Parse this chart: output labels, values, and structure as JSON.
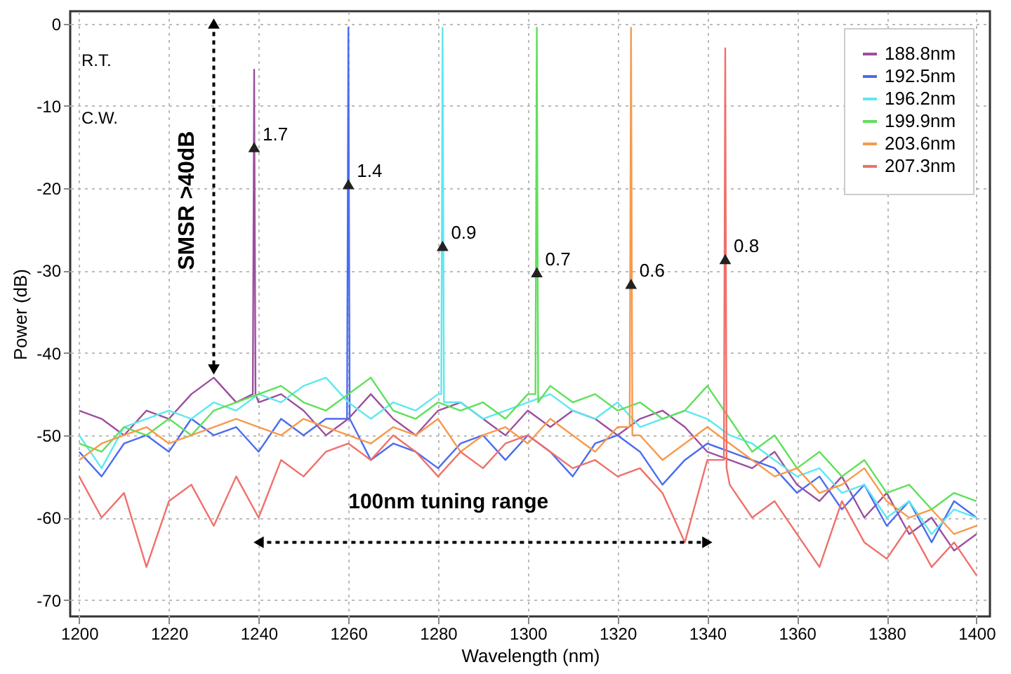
{
  "chart_data": {
    "type": "line",
    "xlabel": "Wavelength (nm)",
    "ylabel": "Power (dB)",
    "xlim": [
      1198,
      1403
    ],
    "ylim": [
      -72,
      1.5
    ],
    "xticks": [
      1200,
      1220,
      1240,
      1260,
      1280,
      1300,
      1320,
      1340,
      1360,
      1380,
      1400
    ],
    "yticks": [
      0,
      -10,
      -20,
      -30,
      -40,
      -50,
      -60,
      -70
    ],
    "grid": true,
    "legend": "top right",
    "line_style": "solid",
    "series": [
      {
        "name": "188.8nm",
        "color": "#9b4f9e",
        "x": [
          1200,
          1205,
          1210,
          1215,
          1220,
          1225,
          1230,
          1235,
          1238.7,
          1239,
          1239.3,
          1240,
          1245,
          1250,
          1255,
          1260,
          1265,
          1270,
          1275,
          1280,
          1285,
          1290,
          1295,
          1300,
          1305,
          1310,
          1315,
          1320,
          1325,
          1330,
          1335,
          1340,
          1345,
          1350,
          1355,
          1360,
          1365,
          1370,
          1375,
          1380,
          1385,
          1390,
          1395,
          1400
        ],
        "values": [
          -47,
          -48,
          -50,
          -47,
          -48,
          -45,
          -43,
          -46,
          -45,
          -5.6,
          -45,
          -46,
          -45,
          -47,
          -50,
          -48,
          -45,
          -48,
          -50,
          -47,
          -46,
          -48,
          -50,
          -47,
          -49,
          -47,
          -48,
          -50,
          -48,
          -47,
          -49,
          -52,
          -53,
          -54,
          -52,
          -56,
          -58,
          -55,
          -60,
          -57,
          -62,
          -60,
          -64,
          -62
        ]
      },
      {
        "name": "192.5nm",
        "color": "#4a6cf0",
        "x": [
          1200,
          1205,
          1210,
          1215,
          1220,
          1225,
          1230,
          1235,
          1240,
          1245,
          1250,
          1255,
          1259.7,
          1260,
          1260.3,
          1265,
          1270,
          1275,
          1280,
          1285,
          1290,
          1295,
          1300,
          1305,
          1310,
          1315,
          1320,
          1325,
          1330,
          1335,
          1340,
          1345,
          1350,
          1355,
          1360,
          1365,
          1370,
          1375,
          1380,
          1385,
          1390,
          1395,
          1400
        ],
        "values": [
          -52,
          -55,
          -51,
          -50,
          -52,
          -48,
          -50,
          -49,
          -52,
          -48,
          -50,
          -48,
          -48,
          -0.5,
          -48,
          -53,
          -51,
          -52,
          -54,
          -51,
          -50,
          -53,
          -50,
          -52,
          -55,
          -51,
          -50,
          -52,
          -56,
          -53,
          -51,
          -52,
          -53,
          -54,
          -57,
          -55,
          -59,
          -56,
          -61,
          -58,
          -63,
          -58,
          -60
        ]
      },
      {
        "name": "196.2nm",
        "color": "#5ee8f0",
        "x": [
          1200,
          1205,
          1210,
          1215,
          1220,
          1225,
          1230,
          1235,
          1240,
          1245,
          1250,
          1255,
          1260,
          1265,
          1270,
          1275,
          1280,
          1280.7,
          1281,
          1281.3,
          1285,
          1290,
          1295,
          1300,
          1305,
          1310,
          1315,
          1320,
          1325,
          1330,
          1335,
          1340,
          1345,
          1350,
          1355,
          1360,
          1365,
          1370,
          1375,
          1380,
          1385,
          1390,
          1395,
          1400
        ],
        "values": [
          -50,
          -54,
          -49,
          -48,
          -47,
          -48,
          -46,
          -47,
          -45,
          -46,
          -44,
          -43,
          -46,
          -48,
          -46,
          -47,
          -45,
          -45,
          -0.5,
          -46,
          -46,
          -48,
          -47,
          -46,
          -45,
          -47,
          -48,
          -46,
          -49,
          -48,
          -47,
          -48,
          -50,
          -51,
          -53,
          -55,
          -54,
          -57,
          -56,
          -60,
          -58,
          -62,
          -59,
          -60
        ]
      },
      {
        "name": "199.9nm",
        "color": "#5fe05a",
        "x": [
          1200,
          1205,
          1210,
          1215,
          1220,
          1225,
          1230,
          1235,
          1240,
          1245,
          1250,
          1255,
          1260,
          1265,
          1270,
          1275,
          1280,
          1285,
          1290,
          1295,
          1300,
          1301.7,
          1302,
          1302.3,
          1305,
          1310,
          1315,
          1320,
          1325,
          1330,
          1335,
          1340,
          1345,
          1350,
          1355,
          1360,
          1365,
          1370,
          1375,
          1380,
          1385,
          1390,
          1395,
          1400
        ],
        "values": [
          -51,
          -52,
          -49,
          -50,
          -48,
          -50,
          -47,
          -46,
          -45,
          -44,
          -46,
          -47,
          -45,
          -43,
          -47,
          -48,
          -46,
          -47,
          -46,
          -48,
          -45,
          -45,
          -0.5,
          -46,
          -44,
          -46,
          -45,
          -47,
          -46,
          -48,
          -47,
          -44,
          -48,
          -52,
          -50,
          -54,
          -52,
          -55,
          -53,
          -57,
          -56,
          -59,
          -57,
          -58
        ]
      },
      {
        "name": "203.6nm",
        "color": "#f79a4c",
        "x": [
          1200,
          1205,
          1210,
          1215,
          1220,
          1225,
          1230,
          1235,
          1240,
          1245,
          1250,
          1255,
          1260,
          1265,
          1270,
          1275,
          1280,
          1285,
          1290,
          1295,
          1300,
          1305,
          1310,
          1315,
          1320,
          1322.7,
          1323,
          1323.3,
          1325,
          1330,
          1335,
          1340,
          1345,
          1350,
          1355,
          1360,
          1365,
          1370,
          1375,
          1380,
          1385,
          1390,
          1395,
          1400
        ],
        "values": [
          -53,
          -51,
          -50,
          -49,
          -51,
          -50,
          -49,
          -48,
          -49,
          -50,
          -48,
          -49,
          -50,
          -51,
          -49,
          -50,
          -48,
          -52,
          -50,
          -49,
          -51,
          -48,
          -50,
          -52,
          -49,
          -49,
          -0.5,
          -50,
          -50,
          -53,
          -51,
          -49,
          -51,
          -53,
          -55,
          -54,
          -57,
          -56,
          -54,
          -58,
          -60,
          -59,
          -62,
          -61
        ]
      },
      {
        "name": "207.3nm",
        "color": "#f0706a",
        "x": [
          1200,
          1205,
          1210,
          1215,
          1220,
          1225,
          1230,
          1235,
          1240,
          1245,
          1250,
          1255,
          1260,
          1265,
          1270,
          1275,
          1280,
          1285,
          1290,
          1295,
          1300,
          1305,
          1310,
          1315,
          1320,
          1325,
          1330,
          1335,
          1340,
          1343.7,
          1344,
          1344.3,
          1345,
          1350,
          1355,
          1360,
          1365,
          1370,
          1375,
          1380,
          1385,
          1390,
          1395,
          1400
        ],
        "values": [
          -55,
          -60,
          -57,
          -66,
          -58,
          -56,
          -61,
          -55,
          -60,
          -53,
          -55,
          -52,
          -51,
          -53,
          -50,
          -52,
          -55,
          -52,
          -54,
          -51,
          -50,
          -52,
          -54,
          -53,
          -55,
          -54,
          -57,
          -63,
          -53,
          -53,
          -3,
          -54,
          -56,
          -60,
          -58,
          -62,
          -66,
          -58,
          -63,
          -65,
          -61,
          -66,
          -63,
          -67
        ]
      }
    ],
    "annotations": [
      "R.T.",
      "C.W.",
      "SMSR >40dB",
      "100nm tuning range",
      {
        "text": "1.7",
        "x": 1239,
        "y": -15
      },
      {
        "text": "1.4",
        "x": 1260,
        "y": -19.5
      },
      {
        "text": "0.9",
        "x": 1281,
        "y": -27
      },
      {
        "text": "0.7",
        "x": 1302,
        "y": -30.2
      },
      {
        "text": "0.6",
        "x": 1323,
        "y": -31.6
      },
      {
        "text": "0.8",
        "x": 1344,
        "y": -28.6
      }
    ]
  }
}
